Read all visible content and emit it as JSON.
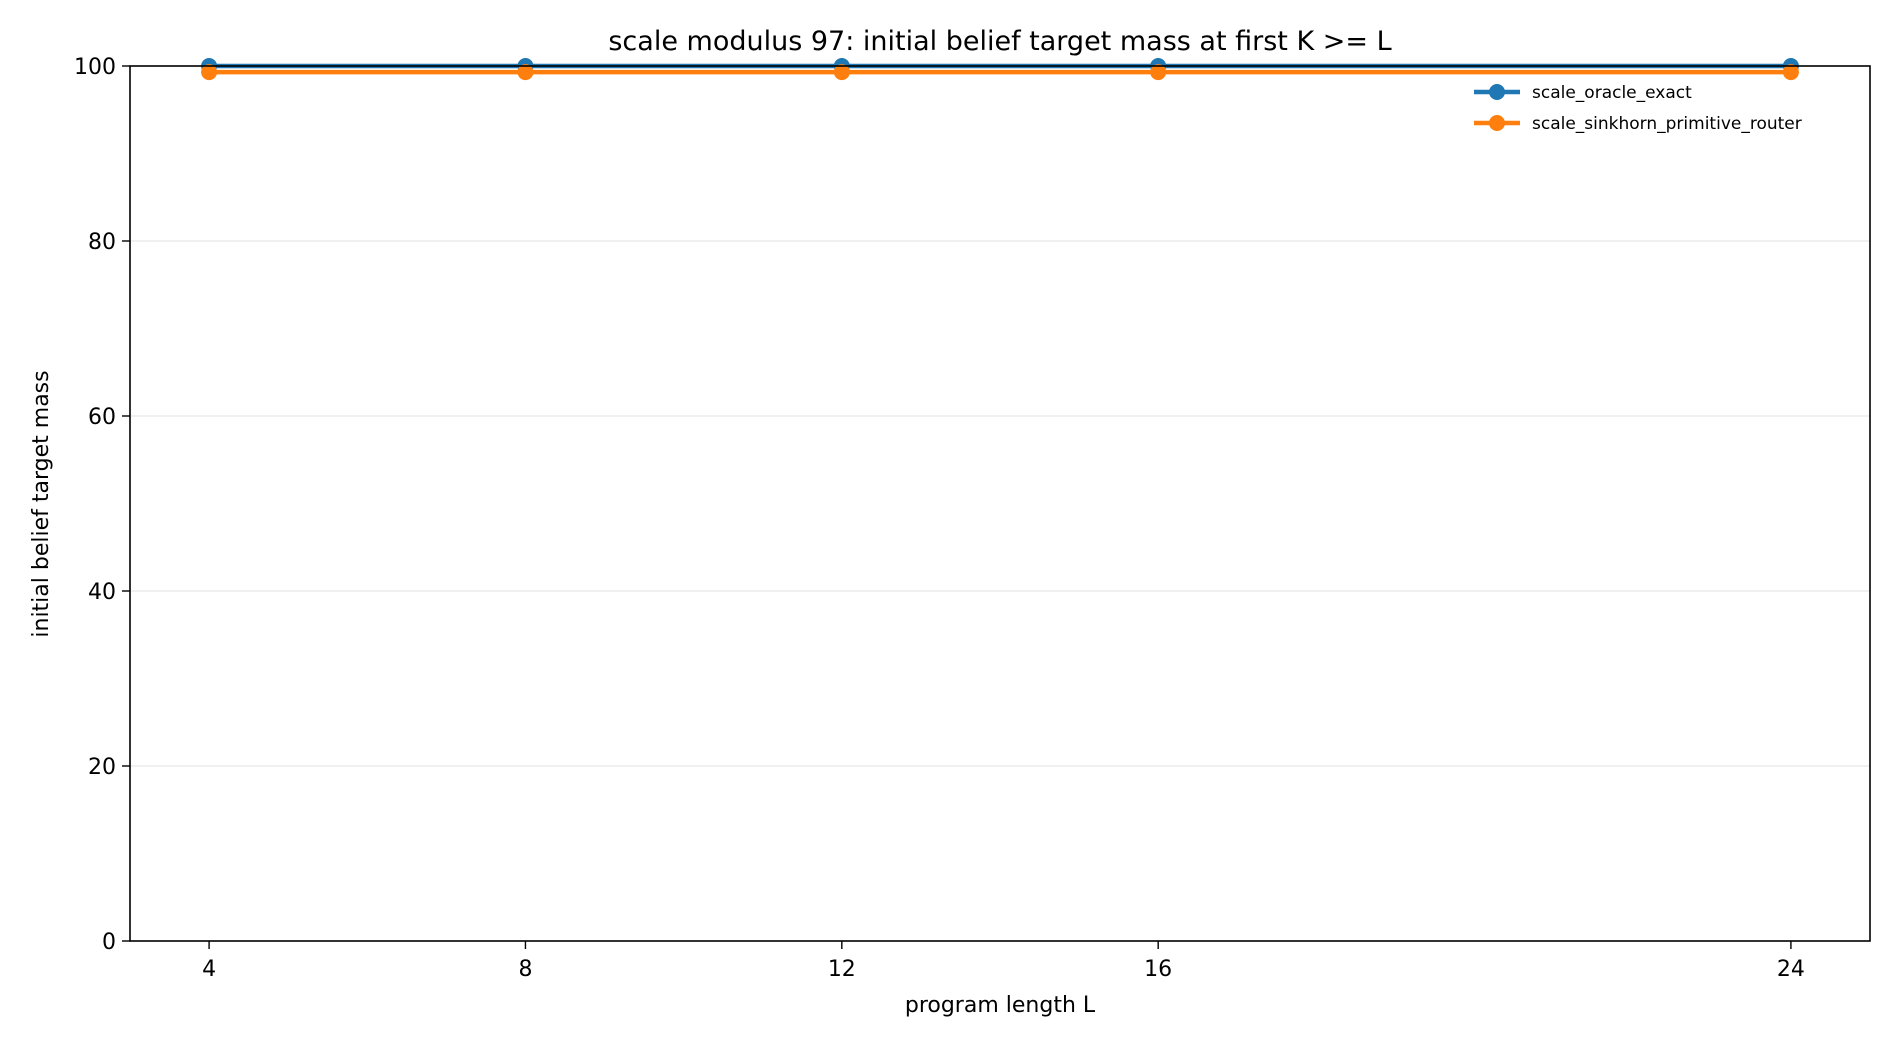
{
  "chart_data": {
    "type": "line",
    "title": "scale modulus 97: initial belief target mass at first K >= L",
    "xlabel": "program length L",
    "ylabel": "initial belief target mass",
    "x": [
      4,
      8,
      12,
      16,
      24
    ],
    "xticks": [
      "4",
      "8",
      "12",
      "16",
      "24"
    ],
    "xlim": [
      3,
      25
    ],
    "ylim": [
      0,
      100
    ],
    "yticks": [
      "0",
      "20",
      "40",
      "60",
      "80",
      "100"
    ],
    "grid": "horizontal",
    "legend_position": "top-right",
    "series": [
      {
        "name": "scale_oracle_exact",
        "color": "#1f77b4",
        "values": [
          100,
          100,
          100,
          100,
          100
        ]
      },
      {
        "name": "scale_sinkhorn_primitive_router",
        "color": "#ff7f0e",
        "values": [
          99.3,
          99.3,
          99.3,
          99.3,
          99.3
        ]
      }
    ]
  }
}
